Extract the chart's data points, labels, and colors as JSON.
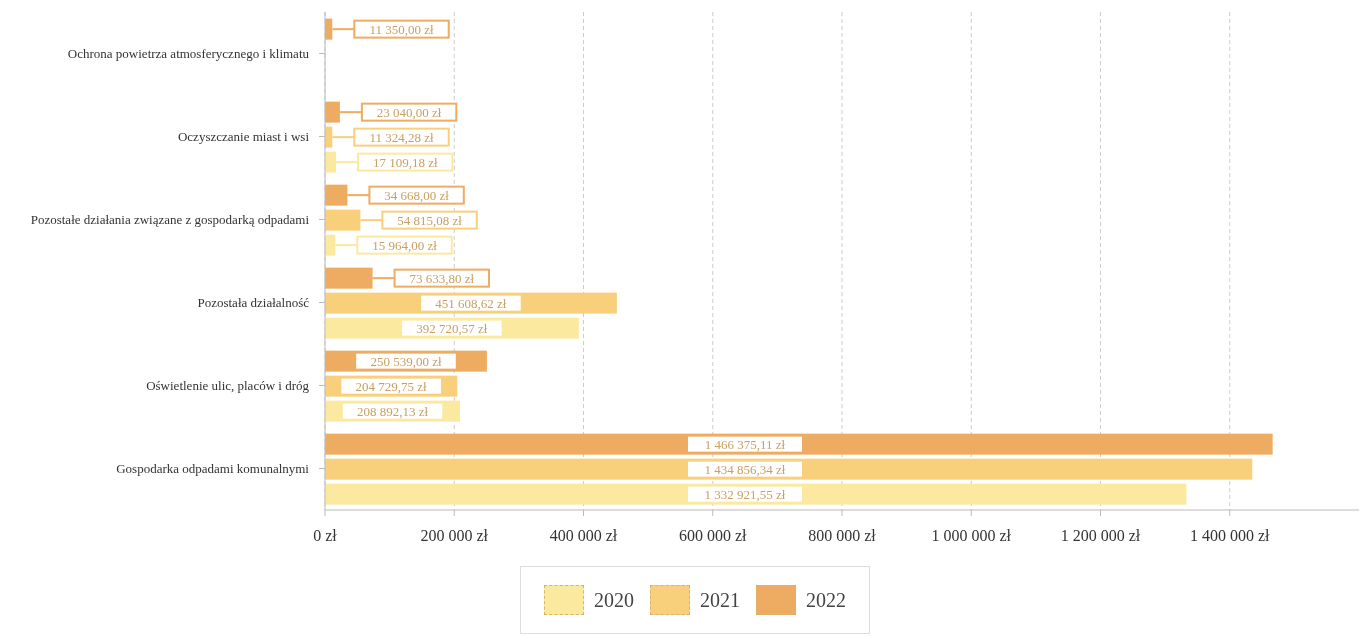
{
  "chart_data": {
    "type": "bar",
    "orientation": "horizontal",
    "categories": [
      "Ochrona powietrza atmosferycznego i klimatu",
      "Oczyszczanie miast i wsi",
      "Pozostałe działania związane z gospodarką odpadami",
      "Pozostała działalność",
      "Oświetlenie ulic, placów i dróg",
      "Gospodarka odpadami komunalnymi"
    ],
    "series": [
      {
        "name": "2020",
        "color": "#fbe9a0",
        "values": [
          null,
          17109.18,
          15964.0,
          392720.57,
          208892.13,
          1332921.55
        ],
        "value_labels": [
          null,
          "17 109,18 zł",
          "15 964,00 zł",
          "392 720,57 zł",
          "208 892,13 zł",
          "1 332 921,55 zł"
        ]
      },
      {
        "name": "2021",
        "color": "#f8d07c",
        "values": [
          null,
          11324.28,
          54815.08,
          451608.62,
          204729.75,
          1434856.34
        ],
        "value_labels": [
          null,
          "11 324,28 zł",
          "54 815,08 zł",
          "451 608,62 zł",
          "204 729,75 zł",
          "1 434 856,34 zł"
        ]
      },
      {
        "name": "2022",
        "color": "#eeac62",
        "values": [
          11350.0,
          23040.0,
          34668.0,
          73633.8,
          250539.0,
          1466375.11
        ],
        "value_labels": [
          "11 350,00 zł",
          "23 040,00 zł",
          "34 668,00 zł",
          "73 633,80 zł",
          "250 539,00 zł",
          "1 466 375,11 zł"
        ]
      }
    ],
    "xlim": [
      0,
      1600000
    ],
    "xticks": [
      {
        "value": 0,
        "label": "0 zł"
      },
      {
        "value": 200000,
        "label": "200 000 zł"
      },
      {
        "value": 400000,
        "label": "400 000 zł"
      },
      {
        "value": 600000,
        "label": "600 000 zł"
      },
      {
        "value": 800000,
        "label": "800 000 zł"
      },
      {
        "value": 1000000,
        "label": "1 000 000 zł"
      },
      {
        "value": 1200000,
        "label": "1 200 000 zł"
      },
      {
        "value": 1400000,
        "label": "1 400 000 zł"
      }
    ],
    "grid": "x",
    "legend": "bottom"
  }
}
